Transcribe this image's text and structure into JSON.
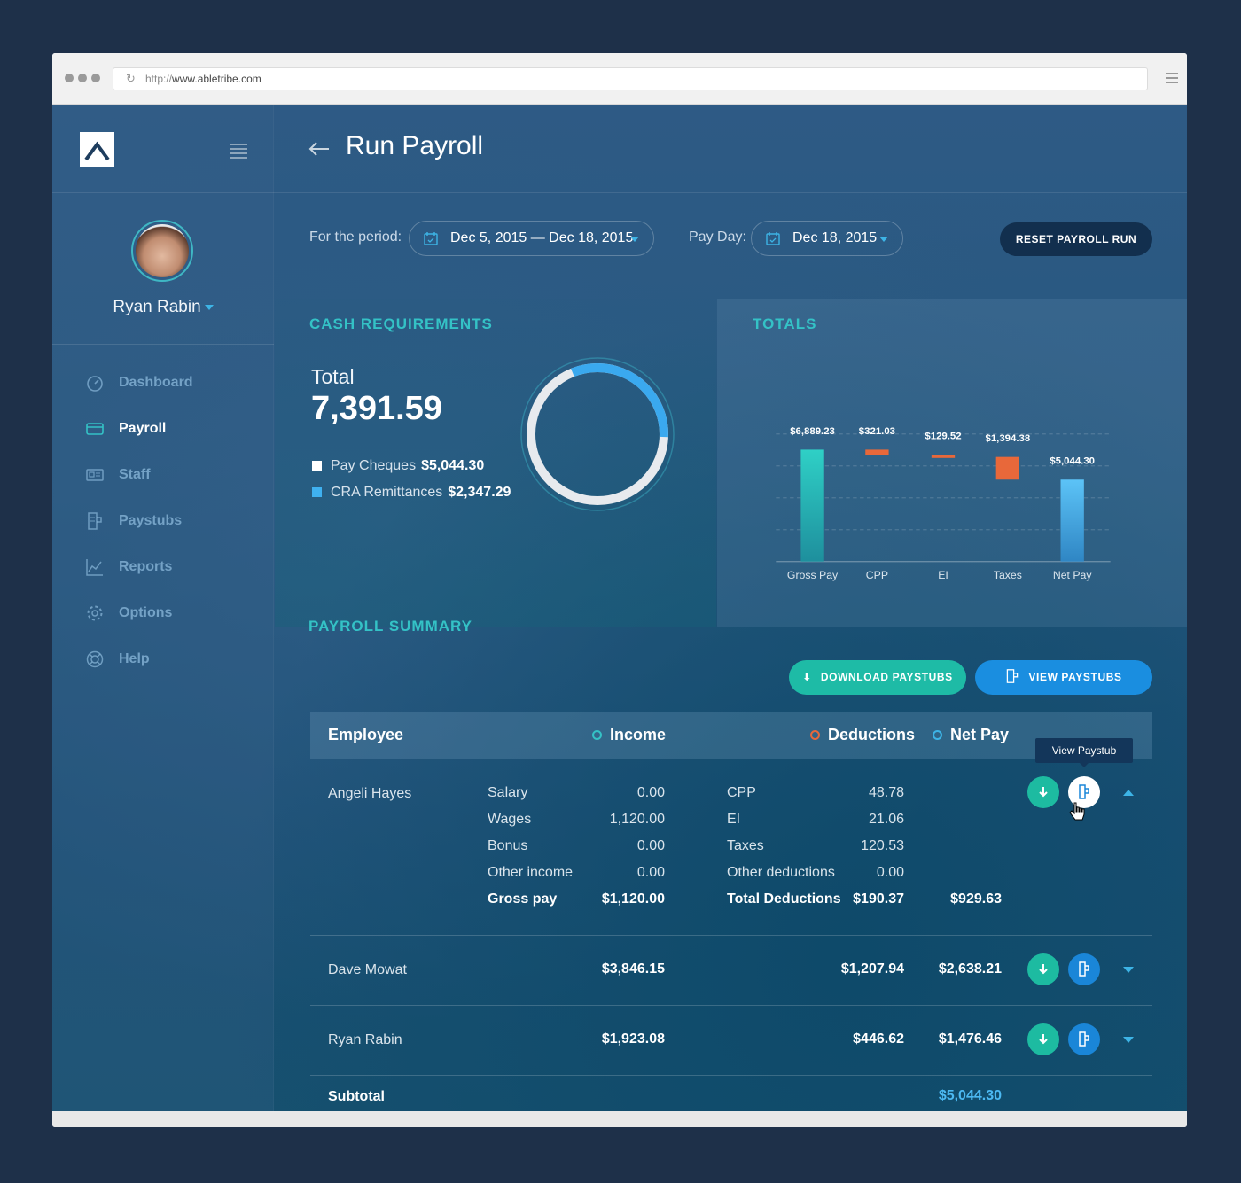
{
  "browser": {
    "url_prefix": "http://",
    "url_host": "www.abletribe.com"
  },
  "user": {
    "name": "Ryan Rabin"
  },
  "nav": [
    {
      "label": "Dashboard",
      "icon": "speedometer-icon",
      "active": false
    },
    {
      "label": "Payroll",
      "icon": "card-icon",
      "active": true
    },
    {
      "label": "Staff",
      "icon": "id-card-icon",
      "active": false
    },
    {
      "label": "Paystubs",
      "icon": "paystub-icon",
      "active": false
    },
    {
      "label": "Reports",
      "icon": "chart-line-icon",
      "active": false
    },
    {
      "label": "Options",
      "icon": "gear-icon",
      "active": false
    },
    {
      "label": "Help",
      "icon": "lifebuoy-icon",
      "active": false
    }
  ],
  "header": {
    "title": "Run Payroll"
  },
  "filters": {
    "period_label": "For the period:",
    "period_value": "Dec 5, 2015 — Dec 18, 2015",
    "payday_label": "Pay Day:",
    "payday_value": "Dec 18, 2015",
    "reset_label": "RESET PAYROLL RUN"
  },
  "cash": {
    "title": "CASH REQUIREMENTS",
    "total_label": "Total",
    "total_value": "7,391.59",
    "items": [
      {
        "label": "Pay Cheques",
        "value": "$5,044.30",
        "color": "#ffffff"
      },
      {
        "label": "CRA Remittances",
        "value": "$2,347.29",
        "color": "#3fb1f0"
      }
    ],
    "donut_fraction_blue": 0.3176
  },
  "totals": {
    "title": "TOTALS"
  },
  "chart_data": {
    "type": "bar",
    "categories": [
      "Gross Pay",
      "CPP",
      "EI",
      "Taxes",
      "Net Pay"
    ],
    "values": [
      6889.23,
      321.03,
      129.52,
      1394.38,
      5044.3
    ],
    "labels": [
      "$6,889.23",
      "$321.03",
      "$129.52",
      "$1,394.38",
      "$5,044.30"
    ],
    "waterfall": true,
    "colors": [
      "#2dc7c0",
      "#e8683a",
      "#e8683a",
      "#e8683a",
      "#49b3ee"
    ],
    "ylim": [
      0,
      8000
    ],
    "grid": true
  },
  "summary": {
    "title": "PAYROLL SUMMARY",
    "download_label": "DOWNLOAD PAYSTUBS",
    "view_label": "VIEW PAYSTUBS",
    "columns": {
      "employee": "Employee",
      "income": "Income",
      "deductions": "Deductions",
      "netpay": "Net Pay"
    },
    "tooltip": "View Paystub",
    "expanded": {
      "name": "Angeli Hayes",
      "income": [
        {
          "label": "Salary",
          "value": "0.00"
        },
        {
          "label": "Wages",
          "value": "1,120.00"
        },
        {
          "label": "Bonus",
          "value": "0.00"
        },
        {
          "label": "Other income",
          "value": "0.00"
        }
      ],
      "gross_label": "Gross pay",
      "gross_value": "$1,120.00",
      "deductions": [
        {
          "label": "CPP",
          "value": "48.78"
        },
        {
          "label": "EI",
          "value": "21.06"
        },
        {
          "label": "Taxes",
          "value": "120.53"
        },
        {
          "label": "Other deductions",
          "value": "0.00"
        }
      ],
      "total_ded_label": "Total Deductions",
      "total_ded_value": "$190.37",
      "net_value": "$929.63"
    },
    "rows": [
      {
        "name": "Dave Mowat",
        "income": "$3,846.15",
        "deductions": "$1,207.94",
        "net": "$2,638.21"
      },
      {
        "name": "Ryan Rabin",
        "income": "$1,923.08",
        "deductions": "$446.62",
        "net": "$1,476.46"
      }
    ],
    "subtotal_label": "Subtotal",
    "subtotal_value": "$5,044.30"
  }
}
